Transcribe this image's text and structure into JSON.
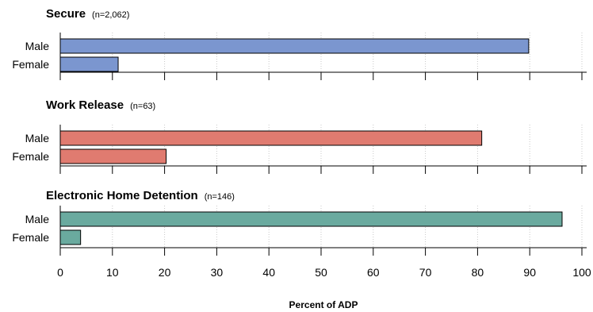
{
  "chart_data": {
    "type": "bar",
    "orientation": "horizontal",
    "xlabel": "Percent of ADP",
    "xlim": [
      0,
      100
    ],
    "xticks": [
      0,
      10,
      20,
      30,
      40,
      50,
      60,
      70,
      80,
      90,
      100
    ],
    "grid": "vertical dotted",
    "panels": [
      {
        "title": "Secure",
        "n_label": "(n=2,062)",
        "color": "#7b96cf",
        "categories": [
          "Male",
          "Female"
        ],
        "values": [
          89.8,
          11.1
        ]
      },
      {
        "title": "Work Release",
        "n_label": "(n=63)",
        "color": "#e07b70",
        "categories": [
          "Male",
          "Female"
        ],
        "values": [
          80.8,
          20.3
        ]
      },
      {
        "title": "Electronic Home Detention",
        "n_label": "(n=146)",
        "color": "#6aaa9f",
        "categories": [
          "Male",
          "Female"
        ],
        "values": [
          96.2,
          3.9
        ]
      }
    ]
  }
}
